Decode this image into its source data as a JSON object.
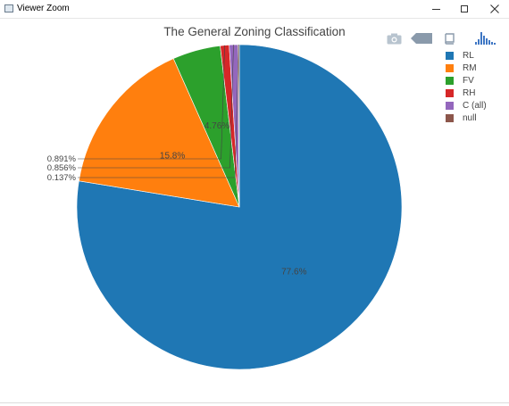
{
  "window": {
    "title": "Viewer Zoom",
    "minimize_label": "—",
    "maximize_label": "☐",
    "close_label": "✕"
  },
  "toolbar": {
    "icons": [
      "camera-icon",
      "tag-icon",
      "book-icon",
      "plotly-logo-icon"
    ]
  },
  "chart_data": {
    "type": "pie",
    "title": "The General Zoning Classification",
    "start_angle_deg": 90,
    "direction": "clockwise",
    "slices": [
      {
        "label": "RL",
        "percent": 77.6,
        "text": "77.6%",
        "color": "#1f77b4"
      },
      {
        "label": "RM",
        "percent": 15.8,
        "text": "15.8%",
        "color": "#ff7f0e"
      },
      {
        "label": "FV",
        "percent": 4.76,
        "text": "4.76%",
        "color": "#2ca02c"
      },
      {
        "label": "RH",
        "percent": 0.891,
        "text": "0.891%",
        "color": "#d62728"
      },
      {
        "label": "C (all)",
        "percent": 0.856,
        "text": "0.856%",
        "color": "#9467bd"
      },
      {
        "label": "null",
        "percent": 0.137,
        "text": "0.137%",
        "color": "#8c564b"
      }
    ],
    "legend_placement": "top-right"
  }
}
